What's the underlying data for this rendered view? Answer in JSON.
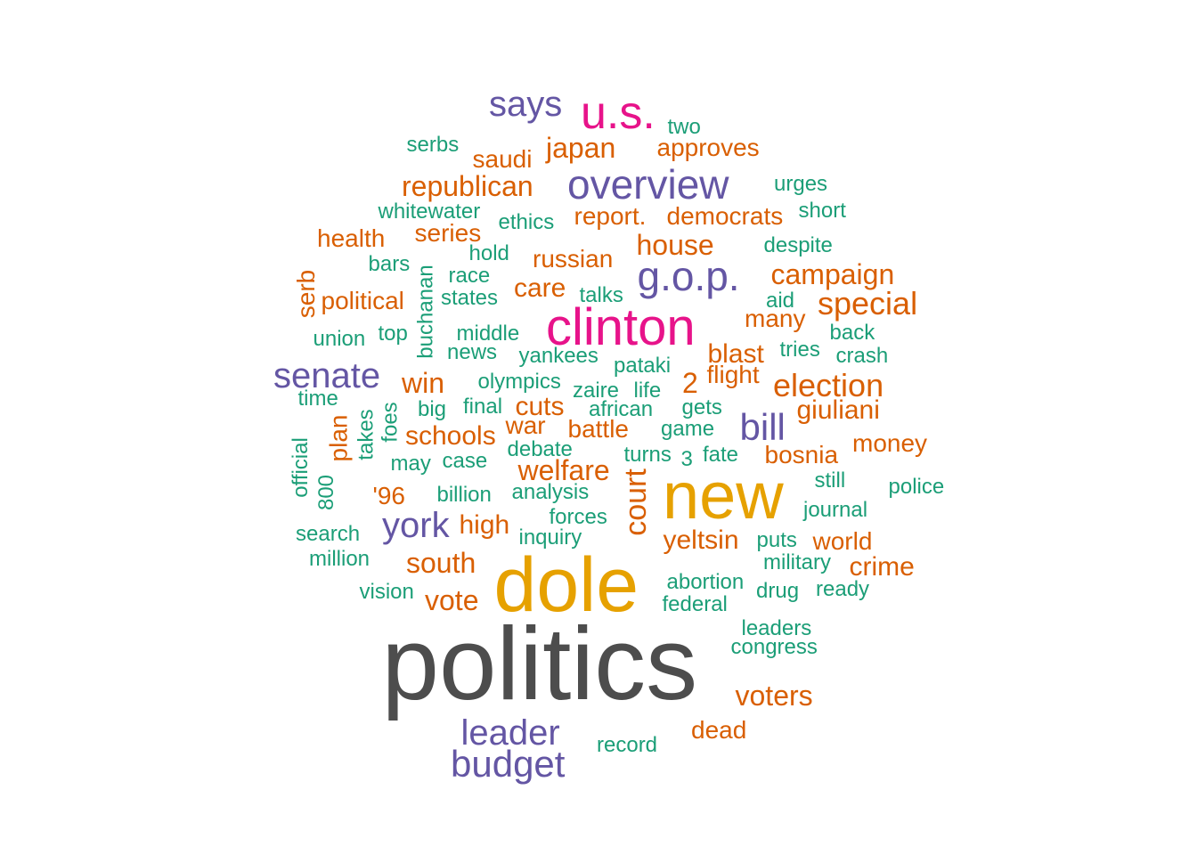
{
  "palette": {
    "gray": "#4d4d4d",
    "gold": "#e6a100",
    "magenta": "#e7138a",
    "purple": "#6456a4",
    "orange": "#d95f02",
    "teal": "#1b9e77"
  },
  "words": [
    {
      "text": "politics",
      "color": "gray"
    },
    {
      "text": "dole",
      "color": "gold"
    },
    {
      "text": "new",
      "color": "gold"
    },
    {
      "text": "clinton",
      "color": "magenta"
    },
    {
      "text": "u.s.",
      "color": "magenta"
    },
    {
      "text": "overview",
      "color": "purple"
    },
    {
      "text": "g.o.p.",
      "color": "purple"
    },
    {
      "text": "senate",
      "color": "purple"
    },
    {
      "text": "bill",
      "color": "purple"
    },
    {
      "text": "says",
      "color": "purple"
    },
    {
      "text": "york",
      "color": "purple"
    },
    {
      "text": "leader",
      "color": "purple"
    },
    {
      "text": "budget",
      "color": "purple"
    },
    {
      "text": "japan",
      "color": "orange"
    },
    {
      "text": "approves",
      "color": "orange"
    },
    {
      "text": "saudi",
      "color": "orange"
    },
    {
      "text": "republican",
      "color": "orange"
    },
    {
      "text": "report.",
      "color": "orange"
    },
    {
      "text": "democrats",
      "color": "orange"
    },
    {
      "text": "health",
      "color": "orange"
    },
    {
      "text": "series",
      "color": "orange"
    },
    {
      "text": "house",
      "color": "orange"
    },
    {
      "text": "russian",
      "color": "orange"
    },
    {
      "text": "campaign",
      "color": "orange"
    },
    {
      "text": "serb",
      "color": "orange"
    },
    {
      "text": "political",
      "color": "orange"
    },
    {
      "text": "care",
      "color": "orange"
    },
    {
      "text": "special",
      "color": "orange"
    },
    {
      "text": "many",
      "color": "orange"
    },
    {
      "text": "blast",
      "color": "orange"
    },
    {
      "text": "flight",
      "color": "orange"
    },
    {
      "text": "election",
      "color": "orange"
    },
    {
      "text": "win",
      "color": "orange"
    },
    {
      "text": "2",
      "color": "orange"
    },
    {
      "text": "giuliani",
      "color": "orange"
    },
    {
      "text": "plan",
      "color": "orange"
    },
    {
      "text": "cuts",
      "color": "orange"
    },
    {
      "text": "war",
      "color": "orange"
    },
    {
      "text": "battle",
      "color": "orange"
    },
    {
      "text": "schools",
      "color": "orange"
    },
    {
      "text": "money",
      "color": "orange"
    },
    {
      "text": "bosnia",
      "color": "orange"
    },
    {
      "text": "welfare",
      "color": "orange"
    },
    {
      "text": "'96",
      "color": "orange"
    },
    {
      "text": "court",
      "color": "orange"
    },
    {
      "text": "high",
      "color": "orange"
    },
    {
      "text": "yeltsin",
      "color": "orange"
    },
    {
      "text": "world",
      "color": "orange"
    },
    {
      "text": "south",
      "color": "orange"
    },
    {
      "text": "crime",
      "color": "orange"
    },
    {
      "text": "vote",
      "color": "orange"
    },
    {
      "text": "voters",
      "color": "orange"
    },
    {
      "text": "dead",
      "color": "orange"
    },
    {
      "text": "two",
      "color": "teal"
    },
    {
      "text": "serbs",
      "color": "teal"
    },
    {
      "text": "urges",
      "color": "teal"
    },
    {
      "text": "whitewater",
      "color": "teal"
    },
    {
      "text": "ethics",
      "color": "teal"
    },
    {
      "text": "short",
      "color": "teal"
    },
    {
      "text": "despite",
      "color": "teal"
    },
    {
      "text": "hold",
      "color": "teal"
    },
    {
      "text": "bars",
      "color": "teal"
    },
    {
      "text": "buchanan",
      "color": "teal"
    },
    {
      "text": "race",
      "color": "teal"
    },
    {
      "text": "states",
      "color": "teal"
    },
    {
      "text": "talks",
      "color": "teal"
    },
    {
      "text": "aid",
      "color": "teal"
    },
    {
      "text": "union",
      "color": "teal"
    },
    {
      "text": "top",
      "color": "teal"
    },
    {
      "text": "middle",
      "color": "teal"
    },
    {
      "text": "back",
      "color": "teal"
    },
    {
      "text": "news",
      "color": "teal"
    },
    {
      "text": "yankees",
      "color": "teal"
    },
    {
      "text": "tries",
      "color": "teal"
    },
    {
      "text": "crash",
      "color": "teal"
    },
    {
      "text": "pataki",
      "color": "teal"
    },
    {
      "text": "time",
      "color": "teal"
    },
    {
      "text": "olympics",
      "color": "teal"
    },
    {
      "text": "zaire",
      "color": "teal"
    },
    {
      "text": "life",
      "color": "teal"
    },
    {
      "text": "big",
      "color": "teal"
    },
    {
      "text": "final",
      "color": "teal"
    },
    {
      "text": "african",
      "color": "teal"
    },
    {
      "text": "gets",
      "color": "teal"
    },
    {
      "text": "takes",
      "color": "teal"
    },
    {
      "text": "foes",
      "color": "teal"
    },
    {
      "text": "game",
      "color": "teal"
    },
    {
      "text": "official",
      "color": "teal"
    },
    {
      "text": "debate",
      "color": "teal"
    },
    {
      "text": "turns",
      "color": "teal"
    },
    {
      "text": "fate",
      "color": "teal"
    },
    {
      "text": "may",
      "color": "teal"
    },
    {
      "text": "case",
      "color": "teal"
    },
    {
      "text": "3",
      "color": "teal"
    },
    {
      "text": "800",
      "color": "teal"
    },
    {
      "text": "billion",
      "color": "teal"
    },
    {
      "text": "analysis",
      "color": "teal"
    },
    {
      "text": "still",
      "color": "teal"
    },
    {
      "text": "police",
      "color": "teal"
    },
    {
      "text": "forces",
      "color": "teal"
    },
    {
      "text": "journal",
      "color": "teal"
    },
    {
      "text": "search",
      "color": "teal"
    },
    {
      "text": "inquiry",
      "color": "teal"
    },
    {
      "text": "puts",
      "color": "teal"
    },
    {
      "text": "million",
      "color": "teal"
    },
    {
      "text": "military",
      "color": "teal"
    },
    {
      "text": "abortion",
      "color": "teal"
    },
    {
      "text": "drug",
      "color": "teal"
    },
    {
      "text": "ready",
      "color": "teal"
    },
    {
      "text": "vision",
      "color": "teal"
    },
    {
      "text": "federal",
      "color": "teal"
    },
    {
      "text": "leaders",
      "color": "teal"
    },
    {
      "text": "congress",
      "color": "teal"
    },
    {
      "text": "record",
      "color": "teal"
    }
  ]
}
